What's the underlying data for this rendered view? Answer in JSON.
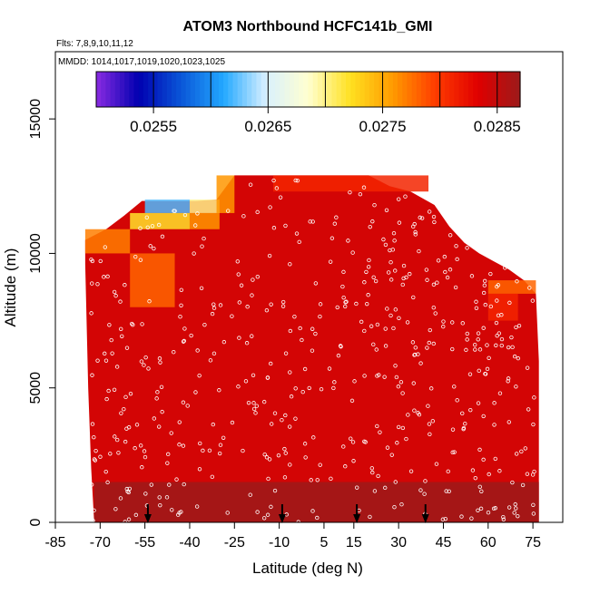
{
  "chart_data": {
    "type": "heatmap",
    "title": "ATOM3 Northbound HCFC141b_GMI",
    "flights_label": "Flts: 7,8,9,10,11,12",
    "dates_label": "MMDD: 1014,1017,1019,1020,1023,1025",
    "xlabel": "Latitude (deg N)",
    "ylabel": "Altitude (m)",
    "xlim": [
      -85,
      85
    ],
    "ylim": [
      0,
      17500
    ],
    "x_ticks": [
      -85,
      -70,
      -55,
      -40,
      -25,
      -10,
      5,
      15,
      30,
      45,
      60,
      75
    ],
    "y_ticks": [
      0,
      5000,
      10000,
      15000
    ],
    "colorbar": {
      "range": [
        0.025,
        0.0287
      ],
      "tick_values": [
        0.0255,
        0.0265,
        0.0275,
        0.0285
      ],
      "tick_labels": [
        "0.0255",
        "0.0265",
        "0.0275",
        "0.0285"
      ],
      "colors": [
        "#8a2be2",
        "#0000b0",
        "#0a56d8",
        "#22a8ff",
        "#d8f0ff",
        "#ffffd0",
        "#ffe020",
        "#ff9a00",
        "#ff3c00",
        "#e00000",
        "#9c1a1a"
      ]
    },
    "curtain": {
      "background_value": 0.0284,
      "top_profile": [
        [
          -75,
          10500
        ],
        [
          -68,
          10900
        ],
        [
          -62,
          11400
        ],
        [
          -56,
          11950
        ],
        [
          -46,
          11950
        ],
        [
          -38,
          11950
        ],
        [
          -31,
          12000
        ],
        [
          -25,
          12900
        ],
        [
          -12,
          12900
        ],
        [
          0,
          12900
        ],
        [
          10,
          12900
        ],
        [
          20,
          12900
        ],
        [
          27,
          12500
        ],
        [
          34,
          12300
        ],
        [
          42,
          11800
        ],
        [
          47,
          11000
        ],
        [
          52,
          10400
        ],
        [
          57,
          10000
        ],
        [
          62,
          9700
        ],
        [
          67,
          9400
        ],
        [
          72,
          9000
        ],
        [
          76,
          8500
        ],
        [
          77,
          6000
        ],
        [
          77,
          0
        ]
      ],
      "bottom_left": [
        [
          -75,
          9600
        ],
        [
          -74,
          5000
        ],
        [
          -73,
          2000
        ],
        [
          -72,
          0
        ]
      ],
      "features": [
        {
          "lat_range": [
            -55,
            -40
          ],
          "alt_range": [
            11500,
            12000
          ],
          "value": 0.0262
        },
        {
          "lat_range": [
            -40,
            -30
          ],
          "alt_range": [
            11500,
            12000
          ],
          "value": 0.027
        },
        {
          "lat_range": [
            -60,
            -40
          ],
          "alt_range": [
            10900,
            11500
          ],
          "value": 0.0272
        },
        {
          "lat_range": [
            -40,
            -30
          ],
          "alt_range": [
            10900,
            11500
          ],
          "value": 0.0276
        },
        {
          "lat_range": [
            -31,
            -25
          ],
          "alt_range": [
            11500,
            12900
          ],
          "value": 0.0276
        },
        {
          "lat_range": [
            -75,
            -60
          ],
          "alt_range": [
            10000,
            10900
          ],
          "value": 0.0277
        },
        {
          "lat_range": [
            -60,
            -45
          ],
          "alt_range": [
            8000,
            10000
          ],
          "value": 0.0278
        },
        {
          "lat_range": [
            60,
            76
          ],
          "alt_range": [
            8500,
            9000
          ],
          "value": 0.0278
        },
        {
          "lat_range": [
            60,
            70
          ],
          "alt_range": [
            7500,
            8500
          ],
          "value": 0.0281
        },
        {
          "lat_range": [
            -12,
            40
          ],
          "alt_range": [
            12300,
            12900
          ],
          "value": 0.0281
        },
        {
          "lat_range": [
            -72,
            77
          ],
          "alt_range": [
            0,
            1500
          ],
          "value": 0.0287
        }
      ]
    },
    "profile_arrows_lat": [
      -54,
      -9,
      16,
      39
    ],
    "sample_note": "white open circles mark aircraft sample locations"
  }
}
